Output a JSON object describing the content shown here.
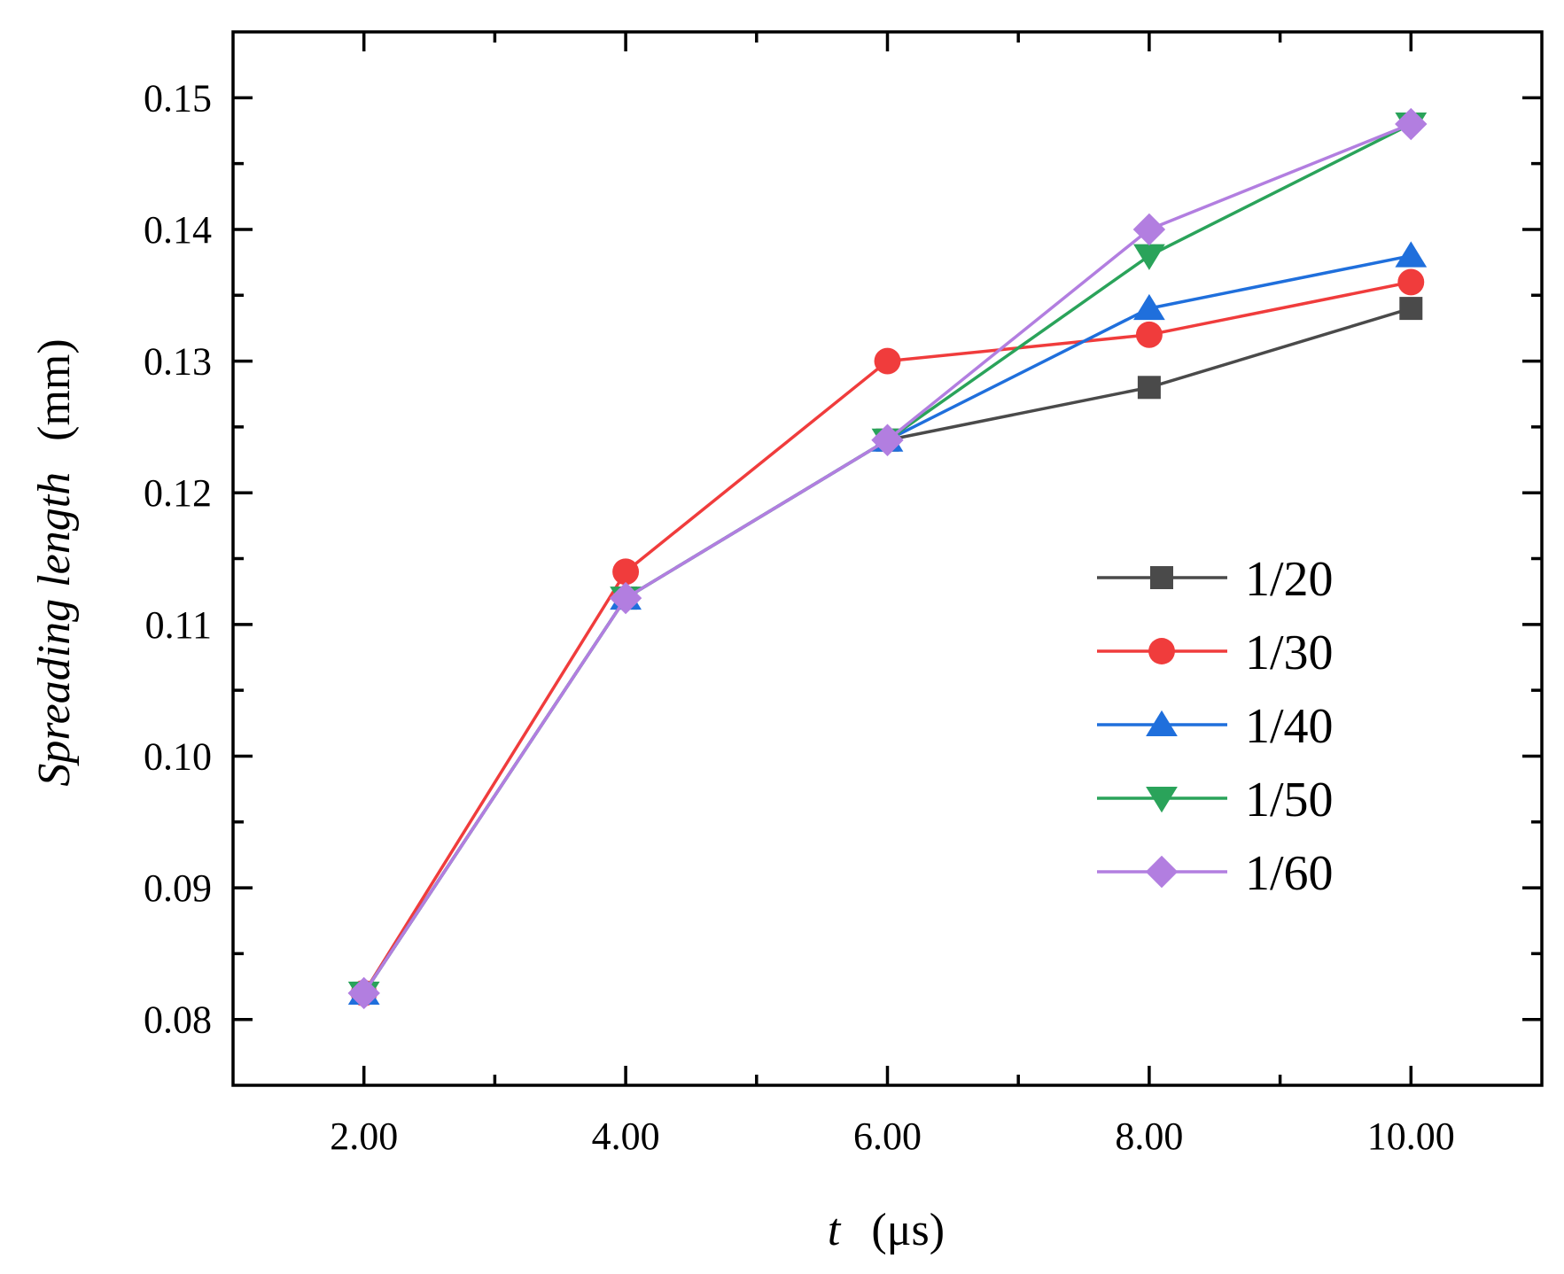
{
  "chart_data": {
    "type": "line",
    "x": [
      2,
      4,
      6,
      8,
      10
    ],
    "xlim": [
      1,
      11
    ],
    "ylim": [
      0.075,
      0.155
    ],
    "x_ticks": [
      2,
      4,
      6,
      8,
      10
    ],
    "x_tick_labels": [
      "2.00",
      "4.00",
      "6.00",
      "8.00",
      "10.00"
    ],
    "x_minor_ticks": [
      3,
      5,
      7,
      9
    ],
    "y_ticks": [
      0.08,
      0.09,
      0.1,
      0.11,
      0.12,
      0.13,
      0.14,
      0.15
    ],
    "y_tick_labels": [
      "0.08",
      "0.09",
      "0.10",
      "0.11",
      "0.12",
      "0.13",
      "0.14",
      "0.15"
    ],
    "y_minor_ticks": [
      0.085,
      0.095,
      0.105,
      0.115,
      0.125,
      0.135,
      0.145
    ],
    "xlabel_var": "t",
    "xlabel_unit": "(μs)",
    "ylabel_var": "Spreading length",
    "ylabel_unit": "(mm)",
    "legend_position": "center-right",
    "grid": false,
    "series": [
      {
        "name": "1/20",
        "color": "#4a4a4a",
        "marker": "square",
        "values": [
          0.082,
          0.112,
          0.124,
          0.128,
          0.134
        ]
      },
      {
        "name": "1/30",
        "color": "#f03c3c",
        "marker": "circle",
        "values": [
          0.082,
          0.114,
          0.13,
          0.132,
          0.136
        ]
      },
      {
        "name": "1/40",
        "color": "#1f6fdc",
        "marker": "triangle-up",
        "values": [
          0.082,
          0.112,
          0.124,
          0.134,
          0.138
        ]
      },
      {
        "name": "1/50",
        "color": "#2aa35a",
        "marker": "triangle-down",
        "values": [
          0.082,
          0.112,
          0.124,
          0.138,
          0.148
        ]
      },
      {
        "name": "1/60",
        "color": "#b27ee0",
        "marker": "diamond",
        "values": [
          0.082,
          0.112,
          0.124,
          0.14,
          0.148
        ]
      }
    ]
  }
}
